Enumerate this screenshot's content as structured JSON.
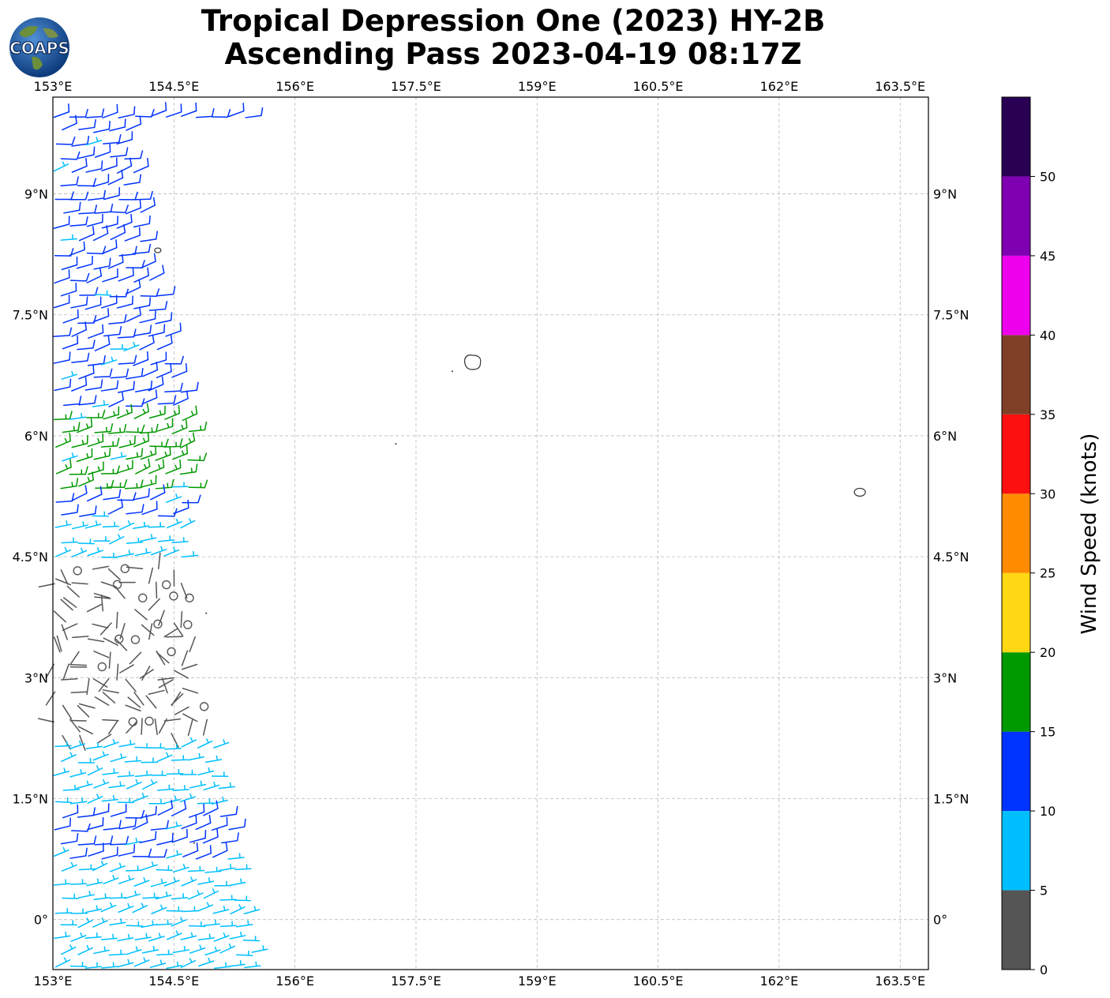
{
  "header": {
    "title_line1": "Tropical Depression One (2023) HY-2B",
    "title_line2": "Ascending Pass 2023-04-19 08:17Z",
    "logo_text": "COAPS"
  },
  "map": {
    "lon_ticks": [
      "153°E",
      "154.5°E",
      "156°E",
      "157.5°E",
      "159°E",
      "160.5°E",
      "162°E",
      "163.5°E"
    ],
    "lat_ticks": [
      "9°N",
      "7.5°N",
      "6°N",
      "4.5°N",
      "3°N",
      "1.5°N",
      "0°"
    ],
    "lon_values": [
      153,
      154.5,
      156,
      157.5,
      159,
      160.5,
      162,
      163.5
    ],
    "lat_values": [
      9,
      7.5,
      6,
      4.5,
      3,
      1.5,
      0
    ],
    "lon_range": [
      153,
      163.85
    ],
    "lat_range": [
      -0.62,
      10.2
    ],
    "grid": "dashed"
  },
  "colorbar": {
    "title": "Wind Speed (knots)",
    "tick_labels": [
      "0",
      "5",
      "10",
      "15",
      "20",
      "25",
      "30",
      "35",
      "40",
      "45",
      "50"
    ],
    "bins": [
      {
        "from": 0,
        "to": 5,
        "color": "#555555"
      },
      {
        "from": 5,
        "to": 10,
        "color": "#00bfff"
      },
      {
        "from": 10,
        "to": 15,
        "color": "#0033ff"
      },
      {
        "from": 15,
        "to": 20,
        "color": "#009900"
      },
      {
        "from": 20,
        "to": 25,
        "color": "#ffd712"
      },
      {
        "from": 25,
        "to": 30,
        "color": "#ff8c00"
      },
      {
        "from": 30,
        "to": 35,
        "color": "#ff1010"
      },
      {
        "from": 35,
        "to": 40,
        "color": "#804028"
      },
      {
        "from": 40,
        "to": 45,
        "color": "#ee00ee"
      },
      {
        "from": 45,
        "to": 50,
        "color": "#7f00b2"
      },
      {
        "from": 50,
        "to": 55,
        "color": "#2a0055"
      }
    ]
  },
  "chart_data": {
    "type": "scatter",
    "title": "Tropical Depression One (2023) HY-2B Ascending Pass 2023-04-19 08:17Z",
    "xlabel": "",
    "ylabel": "",
    "xlim": [
      153,
      163.85
    ],
    "ylim": [
      -0.62,
      10.2
    ],
    "colorbar_label": "Wind Speed (knots)",
    "swath_edges": [
      [
        9.9,
        154.0
      ],
      [
        8.0,
        154.3
      ],
      [
        6.0,
        154.8
      ],
      [
        4.5,
        154.7
      ],
      [
        3.0,
        154.9
      ],
      [
        1.5,
        155.2
      ],
      [
        0.0,
        155.5
      ],
      [
        -0.6,
        155.6
      ]
    ],
    "speed_bands": [
      {
        "lat_from": 4.8,
        "lat_to": 10.0,
        "speed_kt": 12,
        "color": "#0033ff"
      },
      {
        "lat_from": 5.2,
        "lat_to": 6.3,
        "speed_kt": 17,
        "color": "#009900"
      },
      {
        "lat_from": 3.9,
        "lat_to": 4.9,
        "speed_kt": 7,
        "color": "#00bfff"
      },
      {
        "lat_from": 1.9,
        "lat_to": 4.4,
        "speed_kt": 3,
        "color": "#555555"
      },
      {
        "lat_from": -0.6,
        "lat_to": 2.2,
        "speed_kt": 8,
        "color": "#00bfff"
      },
      {
        "lat_from": 0.7,
        "lat_to": 1.3,
        "speed_kt": 11,
        "color": "#0033ff"
      }
    ],
    "islands_lonlat": [
      [
        154.3,
        8.3
      ],
      [
        158.2,
        6.9
      ],
      [
        157.95,
        6.8
      ],
      [
        157.25,
        5.9
      ],
      [
        163.0,
        5.3
      ],
      [
        154.9,
        3.8
      ],
      [
        154.75,
        0.95
      ]
    ]
  }
}
